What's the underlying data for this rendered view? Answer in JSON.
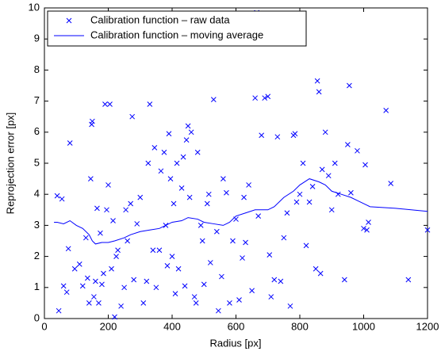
{
  "chart_data": {
    "type": "scatter",
    "xlabel": "Radius [px]",
    "ylabel": "Reprojection error [px]",
    "xlim": [
      0,
      1200
    ],
    "ylim": [
      0,
      10
    ],
    "xticks": [
      0,
      200,
      400,
      600,
      800,
      1000,
      1200
    ],
    "yticks": [
      0,
      1,
      2,
      3,
      4,
      5,
      6,
      7,
      8,
      9,
      10
    ],
    "legend": "northwest",
    "series": [
      {
        "name": "Calibration function – raw data",
        "color": "#0000ff",
        "style": "marker",
        "x": [
          40,
          45,
          55,
          60,
          70,
          75,
          80,
          95,
          110,
          120,
          130,
          135,
          140,
          145,
          148,
          150,
          155,
          160,
          165,
          170,
          175,
          180,
          185,
          190,
          195,
          200,
          205,
          210,
          215,
          220,
          225,
          230,
          240,
          250,
          255,
          260,
          270,
          275,
          280,
          290,
          300,
          310,
          320,
          325,
          330,
          340,
          345,
          350,
          360,
          365,
          375,
          380,
          385,
          390,
          395,
          400,
          405,
          410,
          415,
          420,
          430,
          435,
          440,
          445,
          450,
          455,
          460,
          470,
          475,
          480,
          490,
          495,
          500,
          510,
          515,
          520,
          530,
          540,
          545,
          555,
          560,
          570,
          580,
          590,
          600,
          610,
          620,
          625,
          630,
          640,
          650,
          660,
          665,
          670,
          680,
          690,
          700,
          705,
          710,
          720,
          730,
          740,
          750,
          760,
          770,
          780,
          785,
          790,
          800,
          810,
          820,
          830,
          840,
          850,
          855,
          860,
          865,
          870,
          880,
          890,
          900,
          910,
          920,
          940,
          950,
          955,
          960,
          980,
          1000,
          1005,
          1010,
          1015,
          1070,
          1085,
          1140,
          1200
        ],
        "y": [
          3.95,
          0.25,
          3.85,
          1.05,
          0.85,
          2.25,
          5.65,
          1.6,
          1.75,
          1.05,
          2.6,
          1.3,
          0.5,
          4.5,
          6.25,
          6.35,
          0.7,
          1.2,
          3.55,
          0.5,
          2.75,
          1.1,
          1.45,
          6.9,
          3.5,
          4.3,
          6.9,
          1.6,
          3.15,
          0.05,
          2.0,
          2.2,
          0.4,
          1.0,
          3.5,
          2.5,
          3.7,
          6.5,
          1.25,
          3.05,
          3.9,
          0.5,
          1.2,
          5.0,
          6.9,
          2.2,
          5.5,
          1.0,
          2.2,
          4.75,
          5.35,
          3.0,
          1.7,
          5.95,
          4.5,
          2.0,
          3.7,
          0.8,
          5.0,
          1.6,
          4.2,
          5.2,
          1.05,
          5.75,
          6.2,
          3.9,
          6.0,
          0.7,
          0.5,
          5.35,
          3.0,
          2.5,
          1.1,
          3.7,
          4.0,
          1.8,
          7.05,
          2.8,
          0.25,
          1.35,
          4.5,
          4.05,
          0.5,
          2.5,
          3.2,
          0.6,
          1.95,
          3.9,
          2.45,
          4.3,
          0.9,
          7.1,
          9.85,
          3.3,
          5.9,
          7.1,
          7.15,
          2.05,
          0.7,
          1.25,
          5.85,
          1.2,
          2.6,
          3.4,
          0.4,
          5.9,
          5.95,
          3.75,
          4.0,
          5.0,
          2.35,
          3.75,
          4.25,
          1.6,
          7.65,
          7.3,
          1.45,
          4.8,
          6.0,
          4.6,
          3.5,
          5.0,
          4.0,
          1.25,
          5.6,
          7.5,
          4.05,
          5.4,
          2.9,
          4.95,
          2.85,
          3.1,
          6.7,
          4.35,
          1.25,
          2.85
        ]
      },
      {
        "name": "Calibration function – moving average",
        "color": "#0000ff",
        "style": "line",
        "x": [
          30,
          40,
          60,
          80,
          100,
          120,
          140,
          150,
          160,
          180,
          200,
          220,
          250,
          270,
          300,
          330,
          360,
          400,
          430,
          450,
          480,
          500,
          530,
          560,
          580,
          600,
          630,
          660,
          700,
          720,
          750,
          780,
          800,
          830,
          860,
          880,
          900,
          930,
          960,
          980,
          1000,
          1020,
          1100,
          1200
        ],
        "y": [
          3.1,
          3.1,
          3.05,
          3.15,
          3.0,
          2.9,
          2.7,
          2.5,
          2.4,
          2.45,
          2.45,
          2.5,
          2.6,
          2.7,
          2.8,
          2.85,
          2.9,
          3.1,
          3.15,
          3.25,
          3.2,
          3.1,
          3.05,
          3.0,
          3.1,
          3.3,
          3.4,
          3.5,
          3.5,
          3.6,
          3.9,
          4.1,
          4.3,
          4.5,
          4.4,
          4.3,
          4.1,
          4.0,
          3.9,
          3.8,
          3.7,
          3.6,
          3.55,
          3.45
        ]
      }
    ]
  }
}
